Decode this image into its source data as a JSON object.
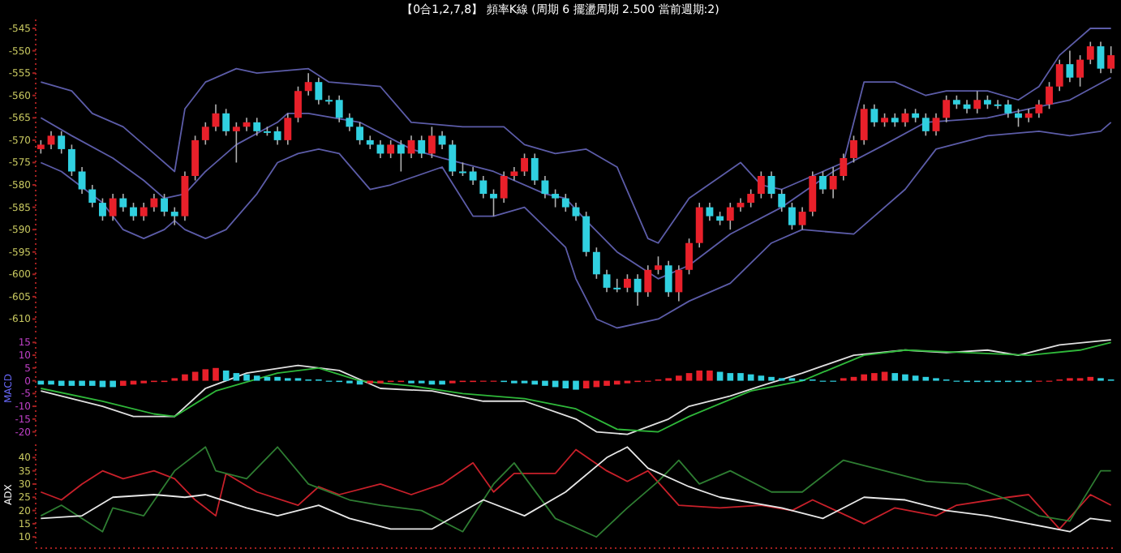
{
  "chart_data": [
    {
      "type": "candlestick",
      "title": "【0合1,2,7,8】 頻率K線 (周期 6 擺盪周期 2.500 當前週期:2)",
      "tick_labels": "y",
      "ylim": [
        -613,
        -543
      ],
      "yticks": [
        -545,
        -550,
        -555,
        -560,
        -565,
        -570,
        -575,
        -580,
        -585,
        -590,
        -595,
        -600,
        -605,
        -610
      ],
      "categories": [
        null,
        null,
        null,
        null,
        null,
        null,
        null,
        null,
        null,
        null,
        null,
        null,
        null,
        null,
        null,
        null,
        null,
        null,
        null,
        null,
        null,
        null,
        null,
        null,
        null,
        null,
        null,
        null,
        null,
        null,
        null,
        null,
        null,
        null,
        null,
        null,
        null,
        null,
        null,
        null,
        null,
        null,
        null,
        null,
        null,
        null,
        null,
        null,
        null,
        null,
        null,
        null,
        null,
        null,
        null,
        null,
        null,
        null,
        null,
        null,
        null,
        null,
        null,
        null,
        null,
        null,
        null,
        null,
        null,
        null,
        null,
        null,
        null,
        null,
        null,
        null,
        null,
        null,
        null,
        null,
        null,
        null,
        null,
        null,
        null,
        null,
        null,
        null,
        null,
        null,
        null,
        null,
        null,
        null,
        null,
        null,
        null,
        null,
        null,
        null,
        null,
        null,
        null,
        null,
        null
      ],
      "ohlc": [
        [
          -572,
          -570,
          -573,
          -571
        ],
        [
          -571,
          -568,
          -572,
          -569
        ],
        [
          -569,
          -568,
          -573,
          -572
        ],
        [
          -572,
          -571,
          -578,
          -577
        ],
        [
          -577,
          -576,
          -582,
          -581
        ],
        [
          -581,
          -580,
          -585,
          -584
        ],
        [
          -584,
          -583,
          -588,
          -587
        ],
        [
          -587,
          -582,
          -588,
          -583
        ],
        [
          -583,
          -582,
          -586,
          -585
        ],
        [
          -585,
          -584,
          -588,
          -587
        ],
        [
          -587,
          -584,
          -588,
          -585
        ],
        [
          -585,
          -582,
          -586,
          -583
        ],
        [
          -583,
          -582,
          -587,
          -586
        ],
        [
          -586,
          -585,
          -589,
          -587
        ],
        [
          -587,
          -577,
          -588,
          -578
        ],
        [
          -578,
          -569,
          -579,
          -570
        ],
        [
          -570,
          -566,
          -571,
          -567
        ],
        [
          -567,
          -562,
          -568,
          -564
        ],
        [
          -564,
          -563,
          -569,
          -568
        ],
        [
          -568,
          -566,
          -575,
          -567
        ],
        [
          -567,
          -565,
          -568,
          -566
        ],
        [
          -566,
          -565,
          -569,
          -568
        ],
        [
          -568,
          -567,
          -569,
          -568
        ],
        [
          -568,
          -567,
          -571,
          -570
        ],
        [
          -570,
          -564,
          -571,
          -565
        ],
        [
          -565,
          -558,
          -566,
          -559
        ],
        [
          -559,
          -555,
          -560,
          -557
        ],
        [
          -557,
          -556,
          -562,
          -561
        ],
        [
          -561,
          -560,
          -562,
          -561
        ],
        [
          -561,
          -560,
          -566,
          -565
        ],
        [
          -565,
          -564,
          -568,
          -567
        ],
        [
          -567,
          -566,
          -571,
          -570
        ],
        [
          -570,
          -569,
          -572,
          -571
        ],
        [
          -571,
          -570,
          -574,
          -573
        ],
        [
          -573,
          -570,
          -574,
          -571
        ],
        [
          -571,
          -570,
          -577,
          -573
        ],
        [
          -573,
          -569,
          -574,
          -570
        ],
        [
          -570,
          -569,
          -574,
          -573
        ],
        [
          -573,
          -567,
          -574,
          -569
        ],
        [
          -569,
          -568,
          -572,
          -571
        ],
        [
          -571,
          -570,
          -578,
          -577
        ],
        [
          -577,
          -575,
          -578,
          -577
        ],
        [
          -577,
          -576,
          -580,
          -579
        ],
        [
          -579,
          -578,
          -583,
          -582
        ],
        [
          -582,
          -581,
          -587,
          -583
        ],
        [
          -583,
          -577,
          -584,
          -578
        ],
        [
          -578,
          -576,
          -579,
          -577
        ],
        [
          -577,
          -573,
          -578,
          -574
        ],
        [
          -574,
          -573,
          -580,
          -579
        ],
        [
          -579,
          -578,
          -583,
          -582
        ],
        [
          -582,
          -581,
          -585,
          -583
        ],
        [
          -583,
          -582,
          -586,
          -585
        ],
        [
          -585,
          -584,
          -588,
          -587
        ],
        [
          -587,
          -586,
          -596,
          -595
        ],
        [
          -595,
          -594,
          -601,
          -600
        ],
        [
          -600,
          -599,
          -604,
          -603
        ],
        [
          -603,
          -601,
          -604,
          -603
        ],
        [
          -603,
          -600,
          -604,
          -601
        ],
        [
          -601,
          -600,
          -607,
          -604
        ],
        [
          -604,
          -598,
          -605,
          -599
        ],
        [
          -599,
          -596,
          -600,
          -598
        ],
        [
          -598,
          -597,
          -605,
          -604
        ],
        [
          -604,
          -598,
          -606,
          -599
        ],
        [
          -599,
          -592,
          -600,
          -593
        ],
        [
          -593,
          -584,
          -594,
          -585
        ],
        [
          -585,
          -584,
          -588,
          -587
        ],
        [
          -587,
          -586,
          -589,
          -588
        ],
        [
          -588,
          -584,
          -590,
          -585
        ],
        [
          -585,
          -583,
          -586,
          -584
        ],
        [
          -584,
          -581,
          -585,
          -582
        ],
        [
          -582,
          -577,
          -583,
          -578
        ],
        [
          -578,
          -577,
          -583,
          -582
        ],
        [
          -582,
          -581,
          -586,
          -585
        ],
        [
          -585,
          -584,
          -590,
          -589
        ],
        [
          -589,
          -585,
          -590,
          -586
        ],
        [
          -586,
          -577,
          -587,
          -578
        ],
        [
          -578,
          -577,
          -582,
          -581
        ],
        [
          -581,
          -576,
          -583,
          -578
        ],
        [
          -578,
          -573,
          -579,
          -574
        ],
        [
          -574,
          -569,
          -575,
          -570
        ],
        [
          -570,
          -562,
          -571,
          -563
        ],
        [
          -563,
          -562,
          -567,
          -566
        ],
        [
          -566,
          -564,
          -567,
          -565
        ],
        [
          -565,
          -564,
          -567,
          -566
        ],
        [
          -566,
          -563,
          -567,
          -564
        ],
        [
          -564,
          -563,
          -566,
          -565
        ],
        [
          -565,
          -564,
          -569,
          -568
        ],
        [
          -568,
          -564,
          -569,
          -565
        ],
        [
          -565,
          -560,
          -566,
          -561
        ],
        [
          -561,
          -560,
          -563,
          -562
        ],
        [
          -562,
          -561,
          -564,
          -563
        ],
        [
          -563,
          -559,
          -564,
          -561
        ],
        [
          -561,
          -560,
          -563,
          -562
        ],
        [
          -562,
          -561,
          -563,
          -562
        ],
        [
          -562,
          -561,
          -565,
          -564
        ],
        [
          -564,
          -563,
          -567,
          -565
        ],
        [
          -565,
          -563,
          -566,
          -564
        ],
        [
          -564,
          -561,
          -565,
          -562
        ],
        [
          -562,
          -557,
          -563,
          -558
        ],
        [
          -558,
          -552,
          -559,
          -553
        ],
        [
          -553,
          -550,
          -557,
          -556
        ],
        [
          -556,
          -551,
          -558,
          -552
        ],
        [
          -552,
          -548,
          -553,
          -549
        ],
        [
          -549,
          -548,
          -555,
          -554
        ],
        [
          -554,
          -549,
          -555,
          -551
        ]
      ],
      "colors": [
        "#e8202a",
        "#e8202a",
        "#30d0e0",
        "#30d0e0",
        "#30d0e0",
        "#30d0e0",
        "#30d0e0",
        "#e8202a",
        "#30d0e0",
        "#30d0e0",
        "#e8202a",
        "#e8202a",
        "#30d0e0",
        "#30d0e0",
        "#e8202a",
        "#e8202a",
        "#e8202a",
        "#e8202a",
        "#30d0e0",
        "#e8202a",
        "#e8202a",
        "#30d0e0",
        "#30d0e0",
        "#30d0e0",
        "#e8202a",
        "#e8202a",
        "#e8202a",
        "#30d0e0",
        "#30d0e0",
        "#30d0e0",
        "#30d0e0",
        "#30d0e0",
        "#30d0e0",
        "#30d0e0",
        "#e8202a",
        "#30d0e0",
        "#e8202a",
        "#30d0e0",
        "#e8202a",
        "#30d0e0",
        "#30d0e0",
        "#30d0e0",
        "#30d0e0",
        "#30d0e0",
        "#30d0e0",
        "#e8202a",
        "#e8202a",
        "#e8202a",
        "#30d0e0",
        "#30d0e0",
        "#30d0e0",
        "#30d0e0",
        "#30d0e0",
        "#30d0e0",
        "#30d0e0",
        "#30d0e0",
        "#30d0e0",
        "#e8202a",
        "#30d0e0",
        "#e8202a",
        "#e8202a",
        "#30d0e0",
        "#e8202a",
        "#e8202a",
        "#e8202a",
        "#30d0e0",
        "#30d0e0",
        "#e8202a",
        "#e8202a",
        "#e8202a",
        "#e8202a",
        "#30d0e0",
        "#30d0e0",
        "#30d0e0",
        "#e8202a",
        "#e8202a",
        "#30d0e0",
        "#e8202a",
        "#e8202a",
        "#e8202a",
        "#e8202a",
        "#30d0e0",
        "#e8202a",
        "#30d0e0",
        "#e8202a",
        "#30d0e0",
        "#30d0e0",
        "#e8202a",
        "#e8202a",
        "#30d0e0",
        "#30d0e0",
        "#e8202a",
        "#30d0e0",
        "#30d0e0",
        "#30d0e0",
        "#30d0e0",
        "#e8202a",
        "#e8202a",
        "#e8202a",
        "#e8202a",
        "#30d0e0",
        "#e8202a",
        "#e8202a",
        "#30d0e0",
        "#e8202a"
      ],
      "series": [
        {
          "type": "line",
          "color": "#5c5ca8",
          "values": [
            -557,
            null,
            null,
            -559,
            null,
            -564,
            null,
            null,
            -567,
            null,
            null,
            -573,
            null,
            -577,
            -563,
            null,
            -557,
            null,
            null,
            -554,
            null,
            -555,
            null,
            null,
            null,
            null,
            -554,
            null,
            -557,
            null,
            null,
            null,
            null,
            -558,
            null,
            null,
            -566,
            null,
            null,
            null,
            null,
            -567,
            null,
            null,
            null,
            -567,
            null,
            -571,
            null,
            null,
            -573,
            null,
            null,
            -572,
            null,
            null,
            -576,
            null,
            null,
            -592,
            -593,
            null,
            null,
            -583,
            null,
            null,
            null,
            null,
            -575,
            null,
            -580,
            null,
            -581,
            null,
            null,
            -578,
            null,
            null,
            -575,
            null,
            -557,
            null,
            null,
            -557,
            null,
            null,
            -560,
            null,
            -559,
            null,
            null,
            null,
            -559,
            null,
            null,
            -561,
            null,
            -558,
            null,
            -551,
            null,
            null,
            -545,
            null,
            -545
          ]
        },
        {
          "type": "line",
          "color": "#5c5ca8",
          "values": [
            -565,
            null,
            null,
            -569,
            null,
            null,
            null,
            -574,
            null,
            null,
            -579,
            null,
            -583,
            null,
            -582,
            null,
            -577,
            null,
            null,
            -571,
            null,
            null,
            null,
            -566,
            -564,
            null,
            -564,
            null,
            null,
            null,
            null,
            -566,
            null,
            null,
            null,
            null,
            -572,
            null,
            null,
            -574,
            null,
            null,
            null,
            null,
            -577,
            null,
            null,
            null,
            null,
            -582,
            null,
            -583,
            null,
            -588,
            null,
            null,
            -595,
            null,
            null,
            null,
            -601,
            null,
            null,
            -598,
            null,
            null,
            null,
            -591,
            null,
            null,
            null,
            null,
            -585,
            null,
            null,
            null,
            null,
            -577,
            null,
            null,
            null,
            null,
            -571,
            null,
            null,
            null,
            -566,
            null,
            null,
            null,
            null,
            null,
            -565,
            null,
            null,
            null,
            -563,
            null,
            null,
            null,
            -561,
            null,
            null,
            null,
            -556
          ]
        },
        {
          "type": "line",
          "color": "#5c5ca8",
          "values": [
            -575,
            null,
            -577,
            null,
            null,
            null,
            -584,
            null,
            -590,
            null,
            -592,
            null,
            -590,
            -588,
            -590,
            null,
            -592,
            null,
            -590,
            null,
            null,
            -582,
            null,
            -575,
            null,
            -573,
            null,
            -572,
            null,
            -573,
            null,
            null,
            -581,
            null,
            -580,
            null,
            null,
            null,
            null,
            -576,
            null,
            null,
            -587,
            null,
            -587,
            null,
            null,
            -585,
            null,
            null,
            null,
            -594,
            -601,
            null,
            -610,
            null,
            -612,
            null,
            null,
            null,
            -610,
            null,
            null,
            -606,
            null,
            null,
            null,
            -602,
            null,
            null,
            null,
            -593,
            null,
            null,
            -590,
            null,
            null,
            null,
            null,
            -591,
            null,
            null,
            null,
            null,
            -581,
            null,
            null,
            -572,
            null,
            null,
            null,
            null,
            -569,
            null,
            null,
            null,
            null,
            -568,
            null,
            null,
            -569,
            null,
            null,
            -568,
            -566
          ]
        }
      ]
    },
    {
      "type": "bar",
      "ylabel": "MACD",
      "tick_labels": "y",
      "ylim": [
        -23,
        17
      ],
      "yticks": [
        15,
        10,
        5,
        0,
        -5,
        -10,
        -15,
        -20
      ],
      "categories": [
        null,
        null,
        null,
        null,
        null,
        null,
        null,
        null,
        null,
        null,
        null,
        null,
        null,
        null,
        null,
        null,
        null,
        null,
        null,
        null,
        null,
        null,
        null,
        null,
        null,
        null,
        null,
        null,
        null,
        null,
        null,
        null,
        null,
        null,
        null,
        null,
        null,
        null,
        null,
        null,
        null,
        null,
        null,
        null,
        null,
        null,
        null,
        null,
        null,
        null,
        null,
        null,
        null,
        null,
        null,
        null,
        null,
        null,
        null,
        null,
        null,
        null,
        null,
        null,
        null,
        null,
        null,
        null,
        null,
        null,
        null,
        null,
        null,
        null,
        null,
        null,
        null,
        null,
        null,
        null,
        null,
        null,
        null,
        null,
        null,
        null,
        null,
        null,
        null,
        null,
        null,
        null,
        null,
        null,
        null,
        null,
        null,
        null,
        null,
        null,
        null,
        null,
        null,
        null,
        null
      ],
      "series": [
        {
          "type": "bar",
          "values": [
            -1.5,
            -1.5,
            -2,
            -2,
            -2,
            -2,
            -2.5,
            -2.5,
            -2,
            -1.5,
            -1,
            -0.5,
            -0.5,
            1,
            2.5,
            3.5,
            4.5,
            5,
            4,
            3,
            2.5,
            2,
            1.5,
            1.5,
            1,
            1,
            0.5,
            0.5,
            0,
            -0.5,
            -1,
            -1.5,
            -1,
            -1,
            -0.5,
            -0.5,
            -1,
            -1,
            -1.5,
            -1.5,
            -1,
            -0.5,
            -0.5,
            0,
            0,
            -0.5,
            -1,
            -1,
            -1.5,
            -2,
            -2.5,
            -3,
            -3.5,
            -3,
            -2.5,
            -2,
            -1.5,
            -1,
            -0.5,
            0,
            0.5,
            1,
            2,
            3,
            4,
            4,
            3.5,
            3,
            3,
            2.5,
            2,
            1.5,
            1,
            1,
            0.5,
            0.5,
            0,
            0,
            1,
            1.5,
            2.5,
            3,
            3.5,
            3,
            2.5,
            2,
            1.5,
            1,
            0.5,
            0,
            -0.5,
            -0.5,
            -0.5,
            -0.5,
            -0.5,
            -0.5,
            -0.5,
            0,
            0,
            0.5,
            1,
            1,
            1.5,
            1,
            0.5
          ],
          "colors": [
            "#30d0e0",
            "#30d0e0",
            "#30d0e0",
            "#30d0e0",
            "#30d0e0",
            "#30d0e0",
            "#30d0e0",
            "#30d0e0",
            "#e8202a",
            "#e8202a",
            "#e8202a",
            "#e8202a",
            "#e8202a",
            "#e8202a",
            "#e8202a",
            "#e8202a",
            "#e8202a",
            "#e8202a",
            "#30d0e0",
            "#30d0e0",
            "#30d0e0",
            "#30d0e0",
            "#30d0e0",
            "#30d0e0",
            "#30d0e0",
            "#30d0e0",
            "#30d0e0",
            "#30d0e0",
            "#30d0e0",
            "#30d0e0",
            "#30d0e0",
            "#30d0e0",
            "#e8202a",
            "#e8202a",
            "#e8202a",
            "#e8202a",
            "#30d0e0",
            "#30d0e0",
            "#30d0e0",
            "#30d0e0",
            "#e8202a",
            "#e8202a",
            "#e8202a",
            "#e8202a",
            "#e8202a",
            "#30d0e0",
            "#30d0e0",
            "#30d0e0",
            "#30d0e0",
            "#30d0e0",
            "#30d0e0",
            "#30d0e0",
            "#30d0e0",
            "#e8202a",
            "#e8202a",
            "#e8202a",
            "#e8202a",
            "#e8202a",
            "#e8202a",
            "#e8202a",
            "#e8202a",
            "#e8202a",
            "#e8202a",
            "#e8202a",
            "#e8202a",
            "#e8202a",
            "#30d0e0",
            "#30d0e0",
            "#30d0e0",
            "#30d0e0",
            "#30d0e0",
            "#30d0e0",
            "#30d0e0",
            "#30d0e0",
            "#30d0e0",
            "#30d0e0",
            "#30d0e0",
            "#30d0e0",
            "#e8202a",
            "#e8202a",
            "#e8202a",
            "#e8202a",
            "#e8202a",
            "#30d0e0",
            "#30d0e0",
            "#30d0e0",
            "#30d0e0",
            "#30d0e0",
            "#30d0e0",
            "#30d0e0",
            "#30d0e0",
            "#30d0e0",
            "#30d0e0",
            "#30d0e0",
            "#30d0e0",
            "#30d0e0",
            "#30d0e0",
            "#e8202a",
            "#e8202a",
            "#e8202a",
            "#e8202a",
            "#e8202a",
            "#e8202a",
            "#30d0e0",
            "#30d0e0"
          ]
        },
        {
          "type": "line",
          "color": "#e0e0e0",
          "values": [
            -4,
            null,
            null,
            null,
            null,
            null,
            -10,
            null,
            null,
            -14,
            null,
            null,
            null,
            -14,
            null,
            null,
            -3,
            null,
            null,
            null,
            3,
            null,
            null,
            null,
            null,
            6,
            null,
            null,
            null,
            4,
            null,
            null,
            null,
            -3,
            null,
            null,
            null,
            null,
            -4,
            null,
            null,
            null,
            null,
            -8,
            null,
            null,
            null,
            -8,
            null,
            null,
            null,
            null,
            -15,
            null,
            -20,
            null,
            null,
            -21,
            null,
            null,
            null,
            -15,
            null,
            -10,
            null,
            null,
            null,
            -6,
            null,
            null,
            -2,
            null,
            null,
            null,
            3,
            null,
            null,
            null,
            null,
            10,
            null,
            null,
            null,
            null,
            12,
            null,
            null,
            null,
            11,
            null,
            null,
            null,
            12,
            null,
            null,
            10,
            null,
            null,
            null,
            14,
            null,
            null,
            null,
            null,
            16
          ]
        },
        {
          "type": "line",
          "color": "#2fb83a",
          "values": [
            -3,
            null,
            null,
            null,
            null,
            null,
            -8,
            null,
            null,
            null,
            null,
            -13,
            null,
            -14,
            null,
            null,
            null,
            -4,
            null,
            null,
            null,
            null,
            null,
            3,
            null,
            null,
            null,
            5,
            null,
            null,
            null,
            0,
            null,
            null,
            null,
            null,
            -2,
            null,
            null,
            null,
            null,
            -5,
            null,
            null,
            null,
            null,
            null,
            -7,
            null,
            null,
            null,
            null,
            -11,
            null,
            null,
            null,
            -19,
            null,
            null,
            null,
            -20,
            null,
            null,
            -14,
            null,
            null,
            null,
            null,
            null,
            -4,
            null,
            null,
            null,
            null,
            0,
            null,
            null,
            null,
            null,
            null,
            10,
            null,
            null,
            null,
            12,
            null,
            null,
            null,
            null,
            null,
            11,
            null,
            null,
            null,
            null,
            null,
            10,
            null,
            null,
            null,
            null,
            12,
            null,
            null,
            15
          ]
        }
      ]
    },
    {
      "type": "line",
      "ylabel": "ADX",
      "tick_labels": "y",
      "ylim": [
        7,
        45
      ],
      "yticks": [
        40,
        35,
        30,
        25,
        20,
        15,
        10
      ],
      "categories": [
        null,
        null,
        null,
        null,
        null,
        null,
        null,
        null,
        null,
        null,
        null,
        null,
        null,
        null,
        null,
        null,
        null,
        null,
        null,
        null,
        null,
        null,
        null,
        null,
        null,
        null,
        null,
        null,
        null,
        null,
        null,
        null,
        null,
        null,
        null,
        null,
        null,
        null,
        null,
        null,
        null,
        null,
        null,
        null,
        null,
        null,
        null,
        null,
        null,
        null,
        null,
        null,
        null,
        null,
        null,
        null,
        null,
        null,
        null,
        null,
        null,
        null,
        null,
        null,
        null,
        null,
        null,
        null,
        null,
        null,
        null,
        null,
        null,
        null,
        null,
        null,
        null,
        null,
        null,
        null,
        null,
        null,
        null,
        null,
        null,
        null,
        null,
        null,
        null,
        null,
        null,
        null,
        null,
        null,
        null,
        null,
        null,
        null,
        null,
        null,
        null,
        null,
        null,
        null,
        null
      ],
      "series": [
        {
          "color": "#c8202a",
          "values": [
            27,
            null,
            24,
            null,
            30,
            null,
            35,
            null,
            32,
            null,
            null,
            35,
            null,
            32,
            null,
            24,
            null,
            18,
            34,
            null,
            null,
            27,
            null,
            null,
            null,
            22,
            null,
            29,
            null,
            26,
            null,
            null,
            null,
            30,
            null,
            null,
            26,
            null,
            null,
            30,
            null,
            null,
            38,
            null,
            27,
            null,
            34,
            null,
            null,
            null,
            34,
            null,
            43,
            null,
            null,
            35,
            null,
            31,
            null,
            35,
            null,
            null,
            22,
            null,
            null,
            null,
            21,
            null,
            null,
            null,
            22,
            null,
            null,
            20,
            null,
            24,
            null,
            null,
            null,
            null,
            15,
            null,
            null,
            21,
            null,
            null,
            null,
            18,
            null,
            22,
            null,
            null,
            null,
            null,
            25,
            null,
            26,
            null,
            null,
            13,
            null,
            null,
            26,
            null,
            22
          ]
        },
        {
          "color": "#2e7d32",
          "values": [
            18,
            null,
            22,
            null,
            null,
            null,
            12,
            21,
            null,
            null,
            18,
            null,
            null,
            35,
            null,
            null,
            44,
            35,
            null,
            null,
            32,
            null,
            null,
            44,
            null,
            null,
            30,
            null,
            null,
            null,
            24,
            null,
            null,
            22,
            null,
            null,
            null,
            20,
            null,
            null,
            null,
            12,
            null,
            null,
            30,
            null,
            38,
            null,
            null,
            null,
            17,
            null,
            null,
            null,
            10,
            null,
            null,
            21,
            null,
            null,
            31,
            null,
            39,
            null,
            30,
            null,
            null,
            35,
            null,
            null,
            null,
            27,
            null,
            null,
            27,
            null,
            null,
            null,
            39,
            null,
            null,
            null,
            null,
            34,
            null,
            null,
            31,
            null,
            null,
            null,
            30,
            null,
            null,
            null,
            24,
            null,
            null,
            18,
            null,
            null,
            16,
            null,
            null,
            35,
            35
          ]
        },
        {
          "color": "#e8e8e8",
          "values": [
            17,
            null,
            null,
            null,
            18,
            null,
            null,
            25,
            null,
            null,
            null,
            26,
            null,
            null,
            25,
            null,
            26,
            null,
            null,
            null,
            21,
            null,
            null,
            18,
            null,
            null,
            null,
            22,
            null,
            null,
            17,
            null,
            null,
            null,
            13,
            null,
            null,
            null,
            13,
            null,
            null,
            null,
            null,
            24,
            null,
            null,
            null,
            18,
            null,
            null,
            null,
            27,
            null,
            null,
            null,
            40,
            null,
            44,
            null,
            36,
            null,
            null,
            null,
            29,
            null,
            null,
            25,
            null,
            null,
            null,
            null,
            null,
            21,
            null,
            null,
            null,
            17,
            null,
            null,
            null,
            25,
            null,
            null,
            null,
            24,
            null,
            null,
            null,
            20,
            null,
            null,
            null,
            18,
            null,
            null,
            null,
            15,
            null,
            null,
            null,
            12,
            null,
            17,
            null,
            16
          ]
        }
      ]
    }
  ]
}
